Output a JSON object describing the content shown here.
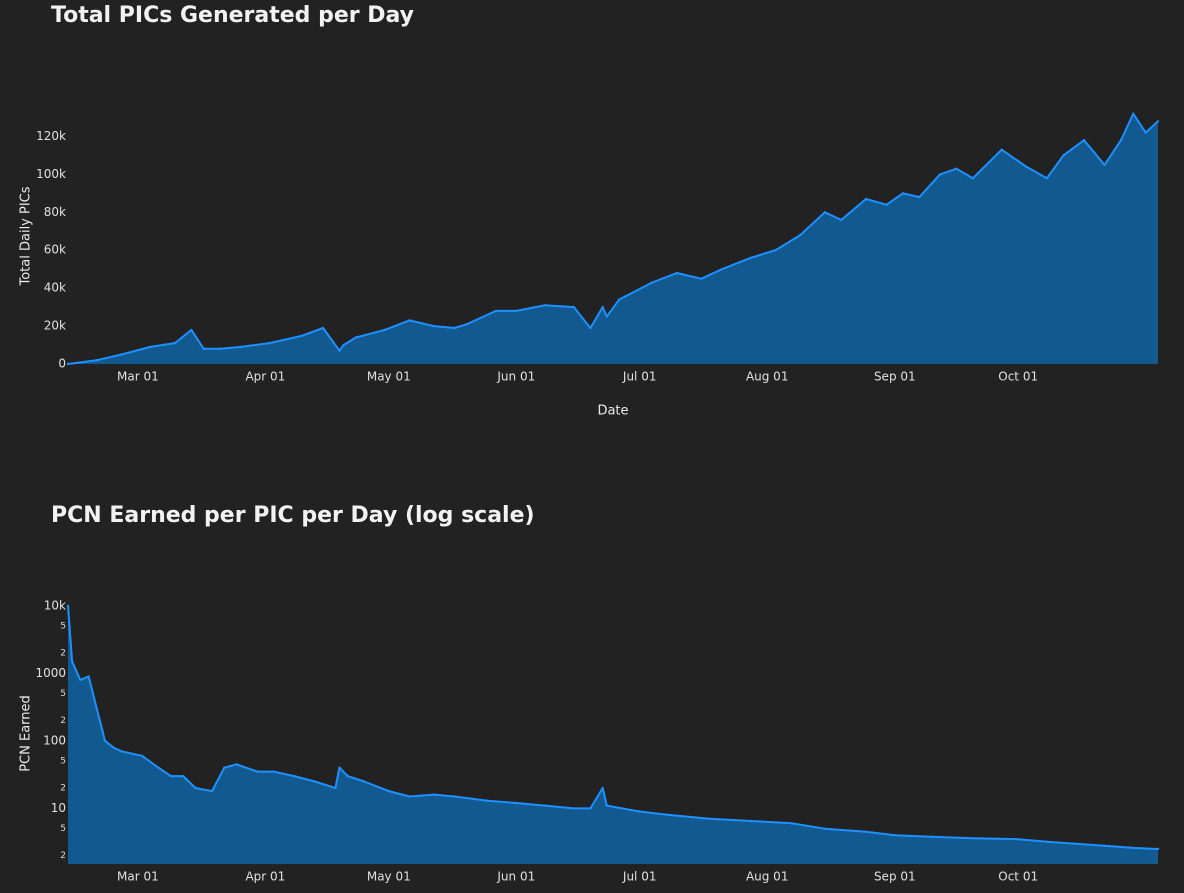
{
  "colors": {
    "background": "#222222",
    "line": "#1e90ff",
    "fill": "#11598f"
  },
  "chart_data": [
    {
      "type": "area",
      "title": "Total PICs Generated per Day",
      "xlabel": "Date",
      "ylabel": "Total Daily PICs",
      "x_tick_labels": [
        "Mar 01",
        "Apr 01",
        "May 01",
        "Jun 01",
        "Jul 01",
        "Aug 01",
        "Sep 01",
        "Oct 01"
      ],
      "y_tick_labels": [
        "0",
        "20k",
        "40k",
        "60k",
        "80k",
        "100k",
        "120k"
      ],
      "ylim": [
        0,
        135000
      ],
      "grid": false,
      "x": [
        "Feb 12",
        "Feb 19",
        "Feb 25",
        "Mar 04",
        "Mar 10",
        "Mar 14",
        "Mar 17",
        "Mar 21",
        "Mar 26",
        "Apr 02",
        "Apr 10",
        "Apr 15",
        "Apr 19",
        "Apr 20",
        "Apr 23",
        "Apr 30",
        "May 06",
        "May 12",
        "May 17",
        "May 20",
        "May 27",
        "Jun 01",
        "Jun 08",
        "Jun 15",
        "Jun 19",
        "Jun 22",
        "Jun 23",
        "Jun 26",
        "Jul 04",
        "Jul 10",
        "Jul 16",
        "Jul 21",
        "Jul 28",
        "Aug 03",
        "Aug 09",
        "Aug 15",
        "Aug 19",
        "Aug 25",
        "Aug 30",
        "Sep 03",
        "Sep 07",
        "Sep 12",
        "Sep 16",
        "Sep 20",
        "Sep 27",
        "Oct 03",
        "Oct 08",
        "Oct 12",
        "Oct 17",
        "Oct 22",
        "Oct 26",
        "Oct 29",
        "Nov 01",
        "Nov 04"
      ],
      "values": [
        0,
        2000,
        5000,
        9000,
        11000,
        18000,
        8000,
        8000,
        9000,
        11000,
        15000,
        19000,
        7000,
        10000,
        14000,
        18000,
        23000,
        20000,
        19000,
        21000,
        28000,
        28000,
        31000,
        30000,
        19000,
        30000,
        25000,
        34000,
        43000,
        48000,
        45000,
        50000,
        56000,
        60000,
        68000,
        80000,
        76000,
        87000,
        84000,
        90000,
        88000,
        100000,
        103000,
        98000,
        113000,
        104000,
        98000,
        110000,
        118000,
        105000,
        118000,
        132000,
        122000,
        128000
      ]
    },
    {
      "type": "area",
      "title": "PCN Earned per PIC per Day (log scale)",
      "xlabel": "",
      "ylabel": "PCN Earned",
      "yscale": "log",
      "x_tick_labels": [
        "Mar 01",
        "Apr 01",
        "May 01",
        "Jun 01",
        "Jul 01",
        "Aug 01",
        "Sep 01",
        "Oct 01"
      ],
      "y_tick_labels": [
        "10k",
        "1000",
        "100",
        "10"
      ],
      "y_minor_labels": [
        "5",
        "2",
        "5",
        "2",
        "5",
        "2",
        "5",
        "2",
        "5",
        "2"
      ],
      "ylim": [
        1.5,
        11000
      ],
      "grid": false,
      "x": [
        "Feb 12",
        "Feb 13",
        "Feb 15",
        "Feb 17",
        "Feb 19",
        "Feb 21",
        "Feb 23",
        "Feb 25",
        "Mar 02",
        "Mar 06",
        "Mar 09",
        "Mar 12",
        "Mar 15",
        "Mar 19",
        "Mar 22",
        "Mar 25",
        "Mar 30",
        "Apr 03",
        "Apr 08",
        "Apr 13",
        "Apr 18",
        "Apr 19",
        "Apr 21",
        "Apr 25",
        "May 01",
        "May 06",
        "May 12",
        "May 17",
        "May 25",
        "Jun 01",
        "Jun 08",
        "Jun 15",
        "Jun 19",
        "Jun 22",
        "Jun 23",
        "Jul 01",
        "Jul 08",
        "Jul 18",
        "Jul 28",
        "Aug 07",
        "Aug 15",
        "Aug 25",
        "Sep 01",
        "Sep 10",
        "Sep 20",
        "Oct 01",
        "Oct 08",
        "Oct 15",
        "Oct 22",
        "Oct 29",
        "Nov 04"
      ],
      "values": [
        10000,
        1500,
        800,
        900,
        300,
        100,
        80,
        70,
        60,
        40,
        30,
        30,
        20,
        18,
        40,
        45,
        35,
        35,
        30,
        25,
        20,
        40,
        30,
        25,
        18,
        15,
        16,
        15,
        13,
        12,
        11,
        10,
        10,
        20,
        11,
        9,
        8,
        7,
        6.5,
        6,
        5,
        4.5,
        4,
        3.8,
        3.6,
        3.5,
        3.2,
        3,
        2.8,
        2.6,
        2.5
      ]
    }
  ]
}
